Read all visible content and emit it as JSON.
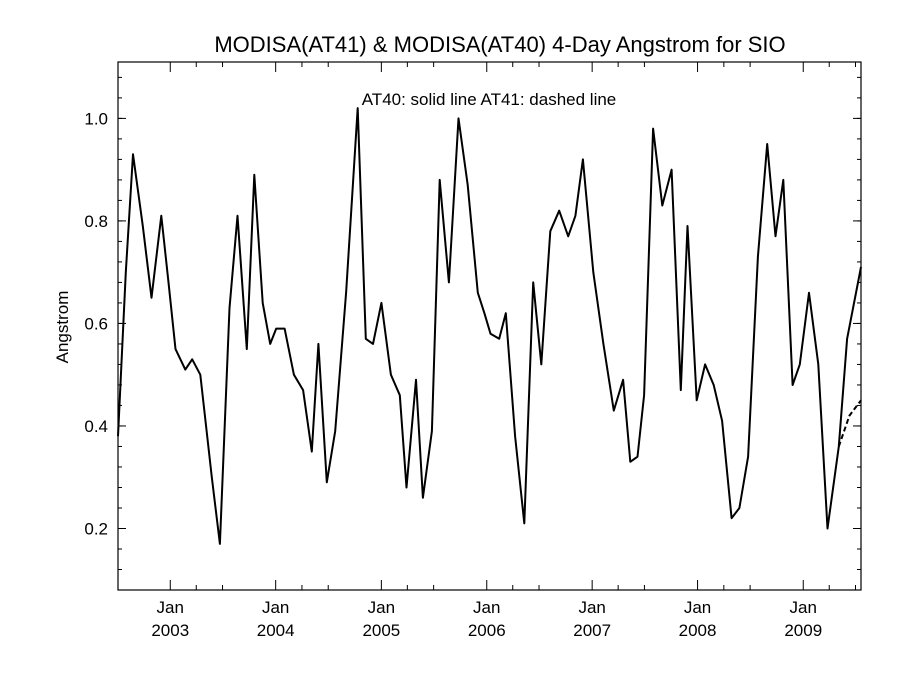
{
  "chart_data": {
    "type": "line",
    "title": "MODISA(AT41) & MODISA(AT40) 4-Day Angstrom for SIO",
    "ylabel": "Angstrom",
    "xlabel": "",
    "annotation": "AT40: solid line   AT41: dashed line",
    "ylim": [
      0.08,
      1.11
    ],
    "xlim": [
      "2002-07-04",
      "2009-07-20"
    ],
    "y_ticks": [
      {
        "value": 0.2,
        "label": "0.2"
      },
      {
        "value": 0.4,
        "label": "0.4"
      },
      {
        "value": 0.6,
        "label": "0.6"
      },
      {
        "value": 0.8,
        "label": "0.8"
      },
      {
        "value": 1.0,
        "label": "1.0"
      }
    ],
    "x_ticks": [
      {
        "date": "2003-01-01",
        "label": "Jan",
        "year": "2003"
      },
      {
        "date": "2004-01-01",
        "label": "Jan",
        "year": "2004"
      },
      {
        "date": "2005-01-01",
        "label": "Jan",
        "year": "2005"
      },
      {
        "date": "2006-01-01",
        "label": "Jan",
        "year": "2006"
      },
      {
        "date": "2007-01-01",
        "label": "Jan",
        "year": "2007"
      },
      {
        "date": "2008-01-01",
        "label": "Jan",
        "year": "2008"
      },
      {
        "date": "2009-01-01",
        "label": "Jan",
        "year": "2009"
      }
    ],
    "series": [
      {
        "name": "AT40",
        "style": "solid",
        "color": "#000000",
        "points": [
          [
            "2002-07-04",
            0.38
          ],
          [
            "2002-07-31",
            0.7
          ],
          [
            "2002-08-25",
            0.93
          ],
          [
            "2002-09-28",
            0.79
          ],
          [
            "2002-10-28",
            0.65
          ],
          [
            "2002-12-01",
            0.81
          ],
          [
            "2002-12-26",
            0.68
          ],
          [
            "2003-01-19",
            0.55
          ],
          [
            "2003-02-22",
            0.51
          ],
          [
            "2003-03-18",
            0.53
          ],
          [
            "2003-04-15",
            0.5
          ],
          [
            "2003-05-25",
            0.3
          ],
          [
            "2003-06-22",
            0.17
          ],
          [
            "2003-07-25",
            0.63
          ],
          [
            "2003-08-22",
            0.81
          ],
          [
            "2003-09-23",
            0.55
          ],
          [
            "2003-10-19",
            0.89
          ],
          [
            "2003-11-17",
            0.64
          ],
          [
            "2003-12-13",
            0.56
          ],
          [
            "2004-01-03",
            0.59
          ],
          [
            "2004-02-01",
            0.59
          ],
          [
            "2004-03-04",
            0.5
          ],
          [
            "2004-04-05",
            0.47
          ],
          [
            "2004-05-05",
            0.35
          ],
          [
            "2004-05-28",
            0.56
          ],
          [
            "2004-06-26",
            0.29
          ],
          [
            "2004-07-25",
            0.39
          ],
          [
            "2004-09-01",
            0.66
          ],
          [
            "2004-10-11",
            1.02
          ],
          [
            "2004-11-08",
            0.57
          ],
          [
            "2004-12-03",
            0.56
          ],
          [
            "2005-01-01",
            0.64
          ],
          [
            "2005-02-03",
            0.5
          ],
          [
            "2005-03-06",
            0.46
          ],
          [
            "2005-03-29",
            0.28
          ],
          [
            "2005-05-01",
            0.49
          ],
          [
            "2005-05-25",
            0.26
          ],
          [
            "2005-06-25",
            0.39
          ],
          [
            "2005-07-22",
            0.88
          ],
          [
            "2005-08-23",
            0.68
          ],
          [
            "2005-09-25",
            1.0
          ],
          [
            "2005-10-27",
            0.87
          ],
          [
            "2005-12-01",
            0.66
          ],
          [
            "2005-12-24",
            0.62
          ],
          [
            "2006-01-14",
            0.58
          ],
          [
            "2006-02-13",
            0.57
          ],
          [
            "2006-03-08",
            0.62
          ],
          [
            "2006-04-09",
            0.38
          ],
          [
            "2006-05-11",
            0.21
          ],
          [
            "2006-06-11",
            0.68
          ],
          [
            "2006-07-09",
            0.52
          ],
          [
            "2006-08-09",
            0.78
          ],
          [
            "2006-09-09",
            0.82
          ],
          [
            "2006-10-10",
            0.77
          ],
          [
            "2006-11-04",
            0.81
          ],
          [
            "2006-11-30",
            0.92
          ],
          [
            "2007-01-05",
            0.7
          ],
          [
            "2007-02-09",
            0.56
          ],
          [
            "2007-03-17",
            0.43
          ],
          [
            "2007-04-18",
            0.49
          ],
          [
            "2007-05-13",
            0.33
          ],
          [
            "2007-06-07",
            0.34
          ],
          [
            "2007-06-30",
            0.46
          ],
          [
            "2007-07-31",
            0.98
          ],
          [
            "2007-09-01",
            0.83
          ],
          [
            "2007-10-03",
            0.9
          ],
          [
            "2007-11-04",
            0.47
          ],
          [
            "2007-11-27",
            0.79
          ],
          [
            "2007-12-29",
            0.45
          ],
          [
            "2008-01-27",
            0.52
          ],
          [
            "2008-02-26",
            0.48
          ],
          [
            "2008-03-26",
            0.41
          ],
          [
            "2008-04-28",
            0.22
          ],
          [
            "2008-05-25",
            0.24
          ],
          [
            "2008-06-24",
            0.34
          ],
          [
            "2008-07-28",
            0.73
          ],
          [
            "2008-08-29",
            0.95
          ],
          [
            "2008-09-27",
            0.77
          ],
          [
            "2008-10-24",
            0.88
          ],
          [
            "2008-11-25",
            0.48
          ],
          [
            "2008-12-20",
            0.52
          ],
          [
            "2009-01-21",
            0.66
          ],
          [
            "2009-02-22",
            0.52
          ],
          [
            "2009-03-26",
            0.2
          ],
          [
            "2009-05-04",
            0.36
          ],
          [
            "2009-06-02",
            0.57
          ],
          [
            "2009-07-20",
            0.71
          ]
        ]
      },
      {
        "name": "AT41",
        "style": "dashed",
        "color": "#000000",
        "points": [
          [
            "2009-05-04",
            0.36
          ],
          [
            "2009-06-10",
            0.42
          ],
          [
            "2009-07-20",
            0.45
          ]
        ]
      }
    ]
  }
}
